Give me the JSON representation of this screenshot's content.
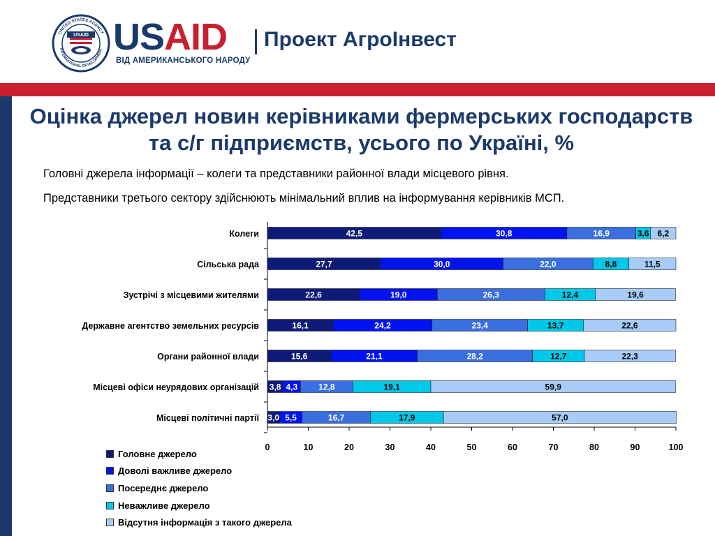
{
  "header": {
    "logo_us": "US",
    "logo_aid": "AID",
    "tagline": "ВІД АМЕРИКАНСЬКОГО НАРОДУ",
    "project": "Проект АгроІнвест",
    "seal_text_top": "UNITED STATES AGENCY",
    "seal_text_bottom": "INTERNATIONAL DEVELOPMENT",
    "seal_center": "USAID"
  },
  "title": "Оцінка джерел новин керівниками фермерських господарств та с/г підприємств, усього по Україні, %",
  "subtext": [
    "Головні джерела інформації – колеги та представники районної влади місцевого рівня.",
    "Представники третього сектору здійснюють мінімальний вплив на інформування керівників МСП."
  ],
  "colors": {
    "navy": "#1b3a6b",
    "red": "#c8202f"
  },
  "chart_data": {
    "type": "bar",
    "orientation": "horizontal",
    "stacked": true,
    "categories": [
      "Колеги",
      "Сільська рада",
      "Зустрічі з місцевими жителями",
      "Державне агентство земельних ресурсів",
      "Органи районної влади",
      "Місцеві офіси неурядових організацій",
      "Місцеві політичні партії"
    ],
    "series": [
      {
        "name": "Головне джерело",
        "color": "#0d1a78",
        "values": [
          42.5,
          27.7,
          22.6,
          16.1,
          15.6,
          3.8,
          3.0
        ]
      },
      {
        "name": "Доволі важливе джерело",
        "color": "#0013f0",
        "values": [
          30.8,
          30.0,
          19.0,
          24.2,
          21.1,
          4.3,
          5.5
        ]
      },
      {
        "name": "Посереднє джерело",
        "color": "#3a6fe0",
        "values": [
          16.9,
          22.0,
          26.3,
          23.4,
          28.2,
          12.8,
          16.7
        ]
      },
      {
        "name": "Неважливе джерело",
        "color": "#00c8e8",
        "values": [
          3.6,
          8.8,
          12.4,
          13.7,
          12.7,
          19.1,
          17.9
        ]
      },
      {
        "name": "Відсутня інформація з такого джерела",
        "color": "#a7ccf7",
        "values": [
          6.2,
          11.5,
          19.6,
          22.6,
          22.3,
          59.9,
          57.0
        ]
      }
    ],
    "data_labels": [
      [
        "42,5",
        "30,8",
        "16,9",
        "3,6",
        "6,2"
      ],
      [
        "27,7",
        "30,0",
        "22,0",
        "8,8",
        "11,5"
      ],
      [
        "22,6",
        "19,0",
        "26,3",
        "12,4",
        "19,6"
      ],
      [
        "16,1",
        "24,2",
        "23,4",
        "13,7",
        "22,6"
      ],
      [
        "15,6",
        "21,1",
        "28,2",
        "12,7",
        "22,3"
      ],
      [
        "3,8",
        "4,3",
        "12,8",
        "19,1",
        "59,9"
      ],
      [
        "3,0",
        "5,5",
        "16,7",
        "17,9",
        "57,0"
      ]
    ],
    "x_ticks": [
      "0",
      "10",
      "20",
      "30",
      "40",
      "50",
      "60",
      "70",
      "80",
      "90",
      "100"
    ],
    "xlim": [
      0,
      100
    ],
    "grid": false,
    "legend_position": "bottom-left"
  }
}
